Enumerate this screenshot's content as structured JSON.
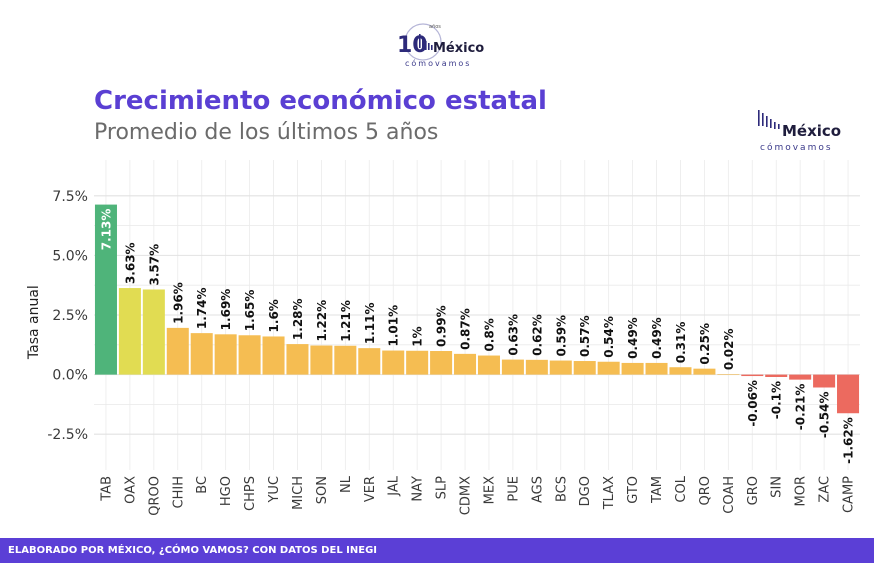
{
  "logos": {
    "top": {
      "text": "México",
      "sub": "cómovamos",
      "anniv": "10",
      "small": "años"
    },
    "corner": {
      "text": "México",
      "sub": "cómovamos"
    }
  },
  "footer": {
    "text": "ELABORADO POR MÉXICO, ¿CÓMO VAMOS? CON DATOS DEL INEGI"
  },
  "chart_data": {
    "type": "bar",
    "title": "Crecimiento económico estatal",
    "subtitle": "Promedio de los últimos 5 años",
    "xlabel": "",
    "ylabel": "Tasa anual",
    "ylim": [
      -4,
      9
    ],
    "yticks": [
      -2.5,
      0,
      2.5,
      5,
      7.5
    ],
    "ytick_labels": [
      "-2.5%",
      "0.0%",
      "2.5%",
      "5.0%",
      "7.5%"
    ],
    "grid": true,
    "categories": [
      "TAB",
      "OAX",
      "QROO",
      "CHIH",
      "BC",
      "HGO",
      "CHPS",
      "YUC",
      "MICH",
      "SON",
      "NL",
      "VER",
      "JAL",
      "NAY",
      "SLP",
      "CDMX",
      "MEX",
      "PUE",
      "AGS",
      "BCS",
      "DGO",
      "TLAX",
      "GTO",
      "TAM",
      "COL",
      "QRO",
      "COAH",
      "GRO",
      "SIN",
      "MOR",
      "ZAC",
      "CAMP"
    ],
    "values": [
      7.13,
      3.63,
      3.57,
      1.96,
      1.74,
      1.69,
      1.65,
      1.6,
      1.28,
      1.22,
      1.21,
      1.11,
      1.01,
      1,
      0.99,
      0.87,
      0.8,
      0.63,
      0.62,
      0.59,
      0.57,
      0.54,
      0.49,
      0.49,
      0.31,
      0.25,
      0.02,
      -0.06,
      -0.1,
      -0.21,
      -0.54,
      -1.62
    ],
    "value_labels": [
      "7.13%",
      "3.63%",
      "3.57%",
      "1.96%",
      "1.74%",
      "1.69%",
      "1.65%",
      "1.6%",
      "1.28%",
      "1.22%",
      "1.21%",
      "1.11%",
      "1.01%",
      "1%",
      "0.99%",
      "0.87%",
      "0.8%",
      "0.63%",
      "0.62%",
      "0.59%",
      "0.57%",
      "0.54%",
      "0.49%",
      "0.49%",
      "0.31%",
      "0.25%",
      "0.02%",
      "-0.06%",
      "-0.1%",
      "-0.21%",
      "-0.54%",
      "-1.62%"
    ],
    "colors": {
      "high": "#4fb47a",
      "mid": "#e1dc52",
      "pos": "#f5bd52",
      "neg": "#ec6a5f",
      "grid": "#ebebeb",
      "title": "#5a3fd3",
      "footer": "#5b3fd6"
    }
  }
}
